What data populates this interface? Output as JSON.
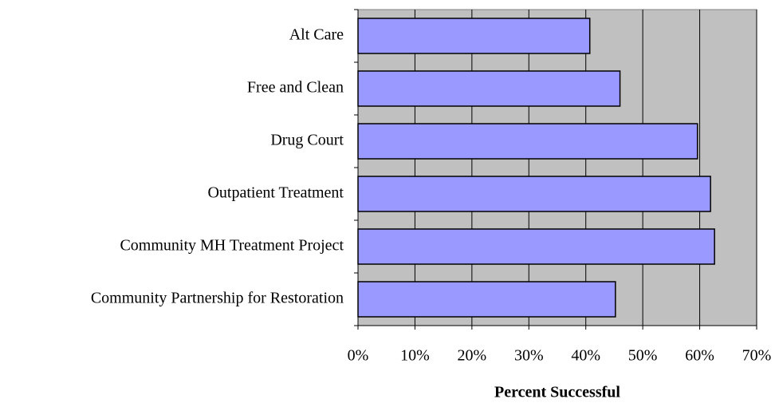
{
  "chart_data": {
    "type": "hbar",
    "xlabel": "Percent Successful",
    "categories": [
      "Alt Care",
      "Free and Clean",
      "Drug Court",
      "Outpatient Treatment",
      "Community MH Treatment Project",
      "Community Partnership for Restoration"
    ],
    "values": [
      40.7,
      46.0,
      59.6,
      61.9,
      62.6,
      45.2
    ],
    "color": "#9999ff",
    "background": "#c0c0c0",
    "xlim": [
      0,
      70
    ],
    "xticks": [
      {
        "value": 0,
        "label": "0%"
      },
      {
        "value": 10,
        "label": "10%"
      },
      {
        "value": 20,
        "label": "20%"
      },
      {
        "value": 30,
        "label": "30%"
      },
      {
        "value": 40,
        "label": "40%"
      },
      {
        "value": 50,
        "label": "50%"
      },
      {
        "value": 60,
        "label": "60%"
      },
      {
        "value": 70,
        "label": "70%"
      }
    ],
    "grid": true
  }
}
